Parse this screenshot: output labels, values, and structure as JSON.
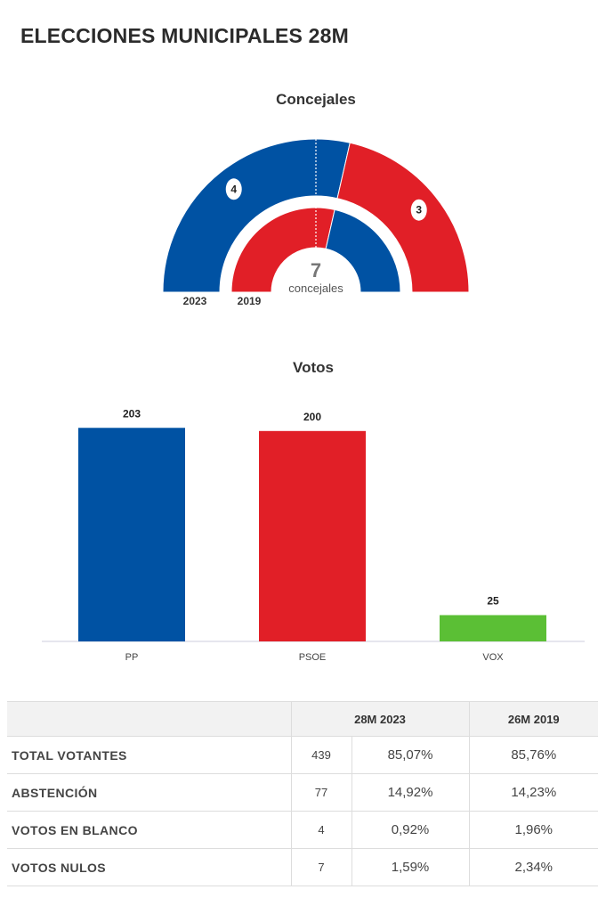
{
  "page": {
    "title": "ELECCIONES MUNICIPALES 28M"
  },
  "colors": {
    "PP": "#0052a3",
    "PSOE": "#e11f27",
    "VOX": "#5bbf35",
    "axis": "#ccccdd"
  },
  "chart_data": [
    {
      "type": "pie",
      "variant": "hemicycle",
      "title": "Concejales",
      "center_number": "7",
      "center_label": "concejales",
      "rings": [
        {
          "name": "2023",
          "slices": [
            {
              "party": "PP",
              "seats": 4
            },
            {
              "party": "PSOE",
              "seats": 3
            }
          ]
        },
        {
          "name": "2019",
          "slices": [
            {
              "party": "PSOE",
              "seats": 4
            },
            {
              "party": "PP",
              "seats": 3
            }
          ]
        }
      ],
      "seat_labels": [
        "4",
        "3"
      ]
    },
    {
      "type": "bar",
      "title": "Votos",
      "categories": [
        "PP",
        "PSOE",
        "VOX"
      ],
      "values": [
        203,
        200,
        25
      ],
      "value_labels": [
        "203",
        "200",
        "25"
      ],
      "ylim": [
        0,
        210
      ],
      "grid": false,
      "legend": "none"
    }
  ],
  "table": {
    "headers": {
      "label": "",
      "col_2023": "28M 2023",
      "col_2019": "26M 2019"
    },
    "rows": [
      {
        "label": "TOTAL VOTANTES",
        "count": "439",
        "pct_2023": "85,07%",
        "pct_2019": "85,76%"
      },
      {
        "label": "ABSTENCIÓN",
        "count": "77",
        "pct_2023": "14,92%",
        "pct_2019": "14,23%"
      },
      {
        "label": "VOTOS EN BLANCO",
        "count": "4",
        "pct_2023": "0,92%",
        "pct_2019": "1,96%"
      },
      {
        "label": "VOTOS NULOS",
        "count": "7",
        "pct_2023": "1,59%",
        "pct_2019": "2,34%"
      }
    ]
  }
}
